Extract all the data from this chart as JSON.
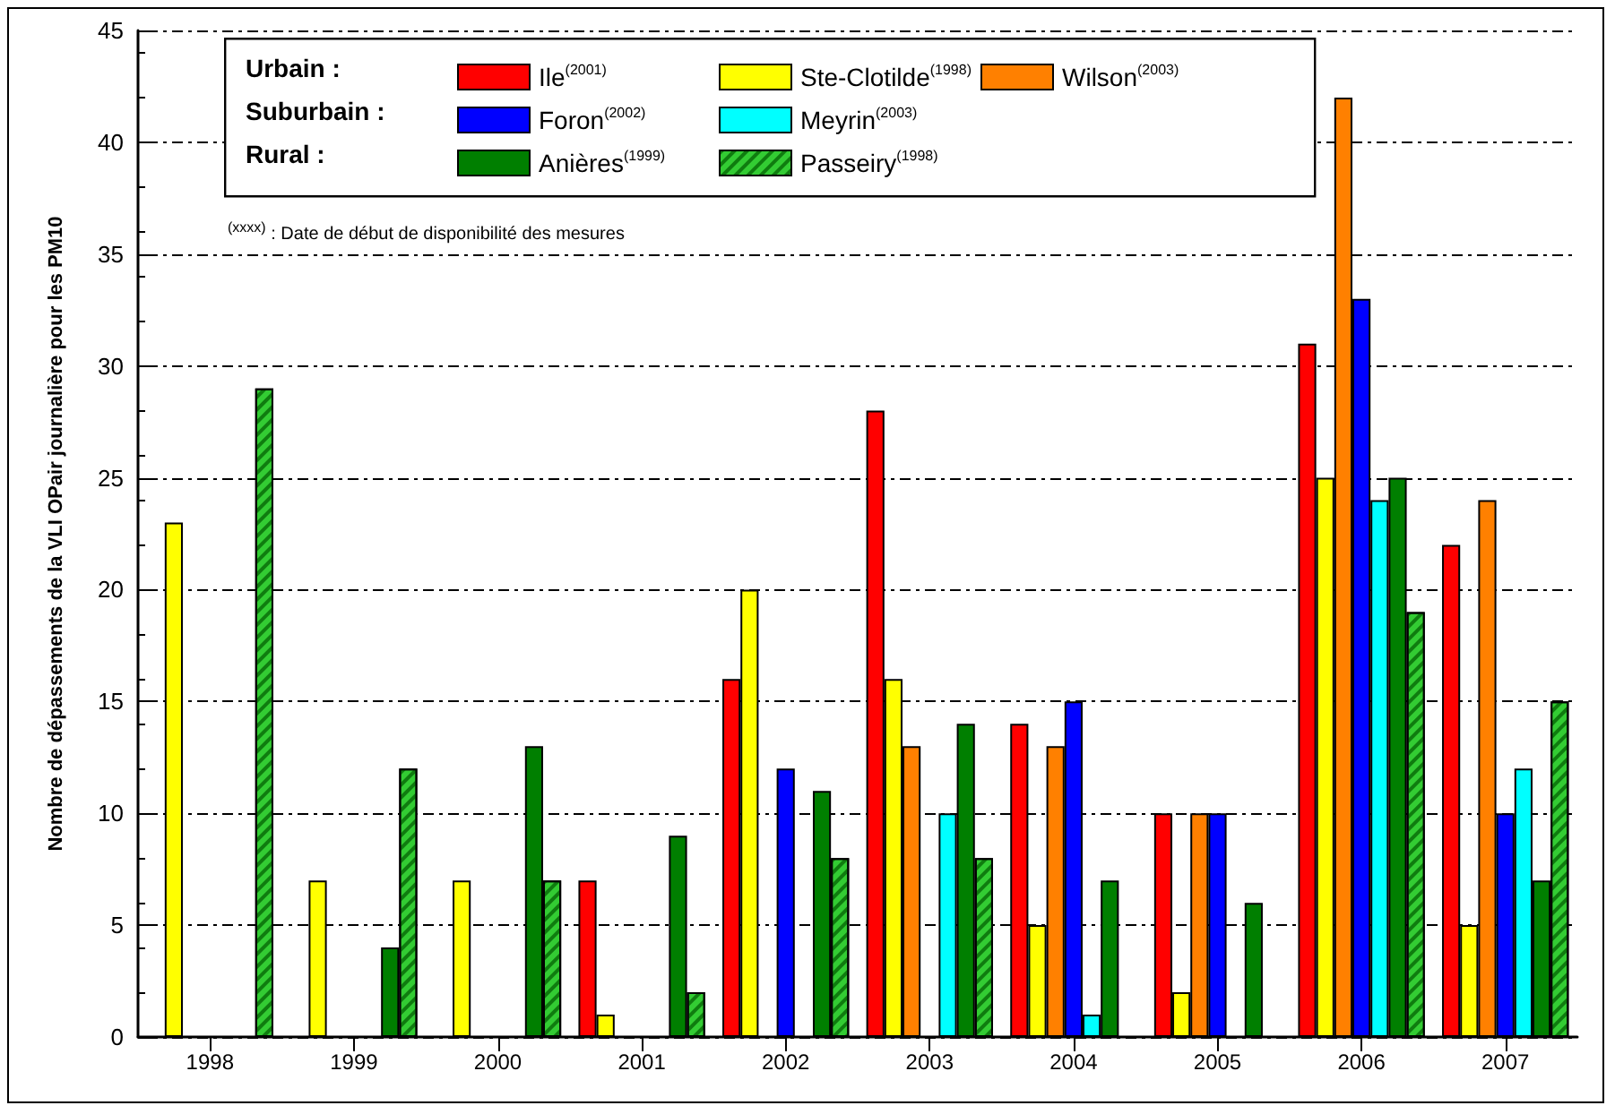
{
  "chart_data": {
    "type": "bar",
    "ylabel": "Nombre de dépassements de la VLI OPair journalière pour les PM10",
    "categories": [
      "1998",
      "1999",
      "2000",
      "2001",
      "2002",
      "2003",
      "2004",
      "2005",
      "2006",
      "2007"
    ],
    "series": [
      {
        "name": "Ile$^{(2001)}$",
        "color": "#ff0000",
        "values": [
          null,
          null,
          null,
          7,
          16,
          28,
          14,
          10,
          31,
          22
        ]
      },
      {
        "name": "Ste-Clotilde$^{(1998)}$",
        "color": "#ffff00",
        "values": [
          23,
          7,
          7,
          1,
          20,
          16,
          5,
          2,
          25,
          5
        ]
      },
      {
        "name": "Wilson$^{(2003)}$",
        "color": "#ff8000",
        "values": [
          null,
          null,
          null,
          null,
          null,
          13,
          13,
          10,
          42,
          24
        ]
      },
      {
        "name": "Foron$^{(2002)}$",
        "color": "#0000ff",
        "values": [
          null,
          null,
          null,
          null,
          12,
          null,
          15,
          10,
          33,
          10
        ]
      },
      {
        "name": "Meyrin$^{(2003)}$",
        "color": "#00ffff",
        "values": [
          null,
          null,
          null,
          null,
          null,
          10,
          1,
          null,
          24,
          12
        ]
      },
      {
        "name": "Anières$^{(1999)}$",
        "color": "#007f00",
        "values": [
          null,
          4,
          13,
          9,
          11,
          14,
          7,
          6,
          25,
          7
        ]
      },
      {
        "name": "Passeiry$^{(1998)}$",
        "color": "#33cc33",
        "values": [
          29,
          12,
          7,
          2,
          8,
          8,
          null,
          null,
          19,
          15
        ]
      }
    ],
    "annotations": [
      "Urbain :",
      "Suburbain :",
      "Rural :",
      "$^{(xxxx)}$ : Date de début de disponibilité des mesures"
    ],
    "ylim": [
      0,
      45
    ],
    "yticks": [
      0,
      5,
      10,
      15,
      20,
      25,
      30,
      35,
      40,
      45
    ],
    "grid": "y",
    "legend": "top"
  }
}
